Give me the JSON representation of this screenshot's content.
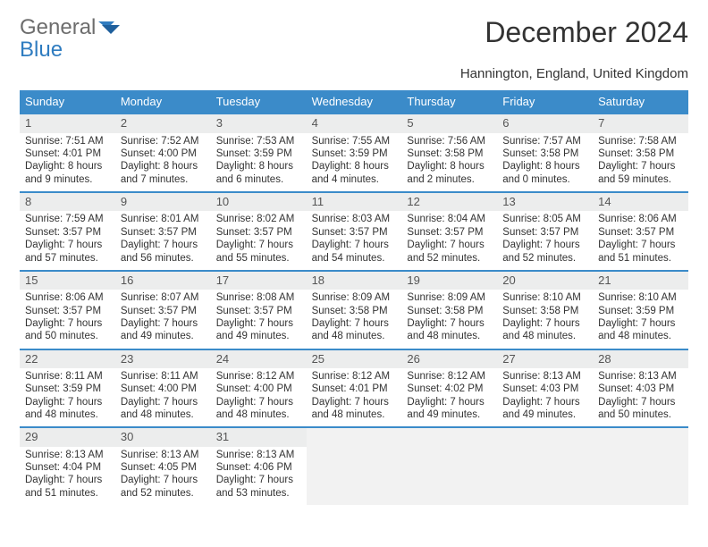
{
  "brand": {
    "line1": "General",
    "line2": "Blue"
  },
  "title": "December 2024",
  "location": "Hannington, England, United Kingdom",
  "header_bg": "#3b8bc9",
  "daynum_bg": "#eceded",
  "rule_color": "#3b8bc9",
  "weekdays": [
    "Sunday",
    "Monday",
    "Tuesday",
    "Wednesday",
    "Thursday",
    "Friday",
    "Saturday"
  ],
  "days": [
    {
      "n": "1",
      "sunrise": "Sunrise: 7:51 AM",
      "sunset": "Sunset: 4:01 PM",
      "day": "Daylight: 8 hours and 9 minutes."
    },
    {
      "n": "2",
      "sunrise": "Sunrise: 7:52 AM",
      "sunset": "Sunset: 4:00 PM",
      "day": "Daylight: 8 hours and 7 minutes."
    },
    {
      "n": "3",
      "sunrise": "Sunrise: 7:53 AM",
      "sunset": "Sunset: 3:59 PM",
      "day": "Daylight: 8 hours and 6 minutes."
    },
    {
      "n": "4",
      "sunrise": "Sunrise: 7:55 AM",
      "sunset": "Sunset: 3:59 PM",
      "day": "Daylight: 8 hours and 4 minutes."
    },
    {
      "n": "5",
      "sunrise": "Sunrise: 7:56 AM",
      "sunset": "Sunset: 3:58 PM",
      "day": "Daylight: 8 hours and 2 minutes."
    },
    {
      "n": "6",
      "sunrise": "Sunrise: 7:57 AM",
      "sunset": "Sunset: 3:58 PM",
      "day": "Daylight: 8 hours and 0 minutes."
    },
    {
      "n": "7",
      "sunrise": "Sunrise: 7:58 AM",
      "sunset": "Sunset: 3:58 PM",
      "day": "Daylight: 7 hours and 59 minutes."
    },
    {
      "n": "8",
      "sunrise": "Sunrise: 7:59 AM",
      "sunset": "Sunset: 3:57 PM",
      "day": "Daylight: 7 hours and 57 minutes."
    },
    {
      "n": "9",
      "sunrise": "Sunrise: 8:01 AM",
      "sunset": "Sunset: 3:57 PM",
      "day": "Daylight: 7 hours and 56 minutes."
    },
    {
      "n": "10",
      "sunrise": "Sunrise: 8:02 AM",
      "sunset": "Sunset: 3:57 PM",
      "day": "Daylight: 7 hours and 55 minutes."
    },
    {
      "n": "11",
      "sunrise": "Sunrise: 8:03 AM",
      "sunset": "Sunset: 3:57 PM",
      "day": "Daylight: 7 hours and 54 minutes."
    },
    {
      "n": "12",
      "sunrise": "Sunrise: 8:04 AM",
      "sunset": "Sunset: 3:57 PM",
      "day": "Daylight: 7 hours and 52 minutes."
    },
    {
      "n": "13",
      "sunrise": "Sunrise: 8:05 AM",
      "sunset": "Sunset: 3:57 PM",
      "day": "Daylight: 7 hours and 52 minutes."
    },
    {
      "n": "14",
      "sunrise": "Sunrise: 8:06 AM",
      "sunset": "Sunset: 3:57 PM",
      "day": "Daylight: 7 hours and 51 minutes."
    },
    {
      "n": "15",
      "sunrise": "Sunrise: 8:06 AM",
      "sunset": "Sunset: 3:57 PM",
      "day": "Daylight: 7 hours and 50 minutes."
    },
    {
      "n": "16",
      "sunrise": "Sunrise: 8:07 AM",
      "sunset": "Sunset: 3:57 PM",
      "day": "Daylight: 7 hours and 49 minutes."
    },
    {
      "n": "17",
      "sunrise": "Sunrise: 8:08 AM",
      "sunset": "Sunset: 3:57 PM",
      "day": "Daylight: 7 hours and 49 minutes."
    },
    {
      "n": "18",
      "sunrise": "Sunrise: 8:09 AM",
      "sunset": "Sunset: 3:58 PM",
      "day": "Daylight: 7 hours and 48 minutes."
    },
    {
      "n": "19",
      "sunrise": "Sunrise: 8:09 AM",
      "sunset": "Sunset: 3:58 PM",
      "day": "Daylight: 7 hours and 48 minutes."
    },
    {
      "n": "20",
      "sunrise": "Sunrise: 8:10 AM",
      "sunset": "Sunset: 3:58 PM",
      "day": "Daylight: 7 hours and 48 minutes."
    },
    {
      "n": "21",
      "sunrise": "Sunrise: 8:10 AM",
      "sunset": "Sunset: 3:59 PM",
      "day": "Daylight: 7 hours and 48 minutes."
    },
    {
      "n": "22",
      "sunrise": "Sunrise: 8:11 AM",
      "sunset": "Sunset: 3:59 PM",
      "day": "Daylight: 7 hours and 48 minutes."
    },
    {
      "n": "23",
      "sunrise": "Sunrise: 8:11 AM",
      "sunset": "Sunset: 4:00 PM",
      "day": "Daylight: 7 hours and 48 minutes."
    },
    {
      "n": "24",
      "sunrise": "Sunrise: 8:12 AM",
      "sunset": "Sunset: 4:00 PM",
      "day": "Daylight: 7 hours and 48 minutes."
    },
    {
      "n": "25",
      "sunrise": "Sunrise: 8:12 AM",
      "sunset": "Sunset: 4:01 PM",
      "day": "Daylight: 7 hours and 48 minutes."
    },
    {
      "n": "26",
      "sunrise": "Sunrise: 8:12 AM",
      "sunset": "Sunset: 4:02 PM",
      "day": "Daylight: 7 hours and 49 minutes."
    },
    {
      "n": "27",
      "sunrise": "Sunrise: 8:13 AM",
      "sunset": "Sunset: 4:03 PM",
      "day": "Daylight: 7 hours and 49 minutes."
    },
    {
      "n": "28",
      "sunrise": "Sunrise: 8:13 AM",
      "sunset": "Sunset: 4:03 PM",
      "day": "Daylight: 7 hours and 50 minutes."
    },
    {
      "n": "29",
      "sunrise": "Sunrise: 8:13 AM",
      "sunset": "Sunset: 4:04 PM",
      "day": "Daylight: 7 hours and 51 minutes."
    },
    {
      "n": "30",
      "sunrise": "Sunrise: 8:13 AM",
      "sunset": "Sunset: 4:05 PM",
      "day": "Daylight: 7 hours and 52 minutes."
    },
    {
      "n": "31",
      "sunrise": "Sunrise: 8:13 AM",
      "sunset": "Sunset: 4:06 PM",
      "day": "Daylight: 7 hours and 53 minutes."
    }
  ],
  "trailing_empty": 4
}
